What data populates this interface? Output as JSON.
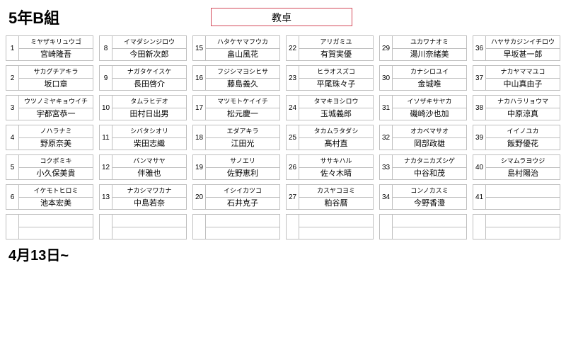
{
  "header": {
    "class_title": "5年B組",
    "teacher_desk": "教卓"
  },
  "footer": {
    "date_label": "4月13日~"
  },
  "colors": {
    "teacher_desk_border": "#d44a5a",
    "grid_border": "#bfbfbf",
    "background": "#ffffff",
    "text": "#000000"
  },
  "seating": {
    "rows": 7,
    "cols": 6,
    "seats": [
      {
        "num": "1",
        "kana": "ミヤザキリュウゴ",
        "name": "宮崎隆吾"
      },
      {
        "num": "8",
        "kana": "イマダシンジロウ",
        "name": "今田新次郎"
      },
      {
        "num": "15",
        "kana": "ハタケヤマフウカ",
        "name": "畠山風花"
      },
      {
        "num": "22",
        "kana": "アリガミユ",
        "name": "有賀実優"
      },
      {
        "num": "29",
        "kana": "ユカワナオミ",
        "name": "湯川奈緒美"
      },
      {
        "num": "36",
        "kana": "ハヤサカジンイチロウ",
        "name": "早坂甚一郎"
      },
      {
        "num": "2",
        "kana": "サカグチアキラ",
        "name": "坂口章"
      },
      {
        "num": "9",
        "kana": "ナガタケイスケ",
        "name": "長田啓介"
      },
      {
        "num": "16",
        "kana": "フジシマヨシヒサ",
        "name": "藤島義久"
      },
      {
        "num": "23",
        "kana": "ヒラオスズコ",
        "name": "平尾珠々子"
      },
      {
        "num": "30",
        "kana": "カナシロユイ",
        "name": "金城唯"
      },
      {
        "num": "37",
        "kana": "ナカヤママユコ",
        "name": "中山真由子"
      },
      {
        "num": "3",
        "kana": "ウツノミヤキョウイチ",
        "name": "宇都宮恭一"
      },
      {
        "num": "10",
        "kana": "タムラヒデオ",
        "name": "田村日出男"
      },
      {
        "num": "17",
        "kana": "マツモトケイイチ",
        "name": "松元慶一"
      },
      {
        "num": "24",
        "kana": "タマキヨシロウ",
        "name": "玉城義郎"
      },
      {
        "num": "31",
        "kana": "イソザキサヤカ",
        "name": "磯崎沙也加"
      },
      {
        "num": "38",
        "kana": "ナカハラリョウマ",
        "name": "中原涼真"
      },
      {
        "num": "4",
        "kana": "ノハラナミ",
        "name": "野原奈美"
      },
      {
        "num": "11",
        "kana": "シバタシオリ",
        "name": "柴田志織"
      },
      {
        "num": "18",
        "kana": "エダアキラ",
        "name": "江田光"
      },
      {
        "num": "25",
        "kana": "タカムラタダシ",
        "name": "髙村直"
      },
      {
        "num": "32",
        "kana": "オカベマサオ",
        "name": "岡部政雄"
      },
      {
        "num": "39",
        "kana": "イイノユカ",
        "name": "飯野優花"
      },
      {
        "num": "5",
        "kana": "コクボミキ",
        "name": "小久保美貴"
      },
      {
        "num": "12",
        "kana": "バンマサヤ",
        "name": "伴雅也"
      },
      {
        "num": "19",
        "kana": "サノエリ",
        "name": "佐野恵利"
      },
      {
        "num": "26",
        "kana": "ササキハル",
        "name": "佐々木晴"
      },
      {
        "num": "33",
        "kana": "ナカタニカズシゲ",
        "name": "中谷和茂"
      },
      {
        "num": "40",
        "kana": "シマムラヨウジ",
        "name": "島村陽治"
      },
      {
        "num": "6",
        "kana": "イケモトヒロミ",
        "name": "池本宏美"
      },
      {
        "num": "13",
        "kana": "ナカシマワカナ",
        "name": "中島若奈"
      },
      {
        "num": "20",
        "kana": "イシイカツコ",
        "name": "石井克子"
      },
      {
        "num": "27",
        "kana": "カスヤコヨミ",
        "name": "粕谷暦"
      },
      {
        "num": "34",
        "kana": "コンノカスミ",
        "name": "今野香澄"
      },
      {
        "num": "41",
        "kana": "",
        "name": ""
      },
      {
        "num": "",
        "kana": "",
        "name": ""
      },
      {
        "num": "",
        "kana": "",
        "name": ""
      },
      {
        "num": "",
        "kana": "",
        "name": ""
      },
      {
        "num": "",
        "kana": "",
        "name": ""
      },
      {
        "num": "",
        "kana": "",
        "name": ""
      },
      {
        "num": "",
        "kana": "",
        "name": ""
      }
    ]
  }
}
